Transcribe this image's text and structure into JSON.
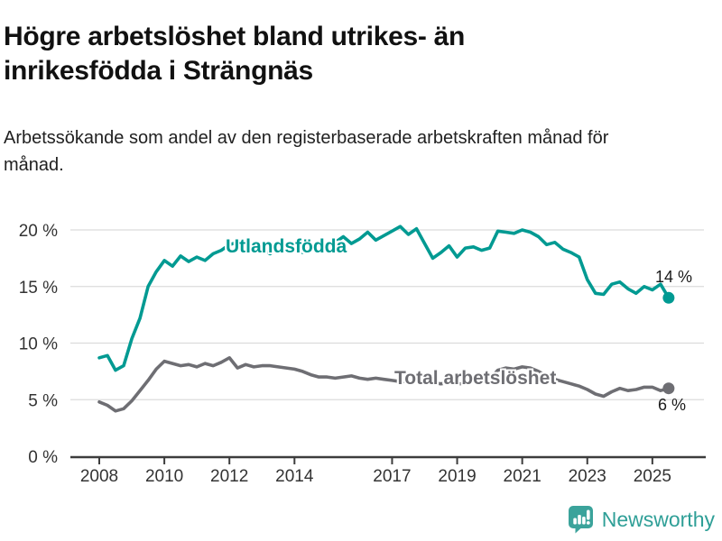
{
  "chart_data": {
    "type": "line",
    "title": "Högre arbetslöshet bland utrikes- än inrikesfödda i Strängnäs",
    "subtitle": "Arbetssökande som andel av den registerbaserade arbetskraften månad för månad.",
    "unit": "%",
    "grid": "horizontal",
    "legend_position": "inline-labels-on-lines",
    "ylim": [
      0,
      21
    ],
    "x_ticks": [
      2008,
      2010,
      2012,
      2014,
      2017,
      2019,
      2021,
      2023,
      2025
    ],
    "y_ticks": [
      {
        "value": 0,
        "label": "0 %"
      },
      {
        "value": 5,
        "label": "5 %"
      },
      {
        "value": 10,
        "label": "10 %"
      },
      {
        "value": 15,
        "label": "15 %"
      },
      {
        "value": 20,
        "label": "20 %"
      }
    ],
    "x": [
      2008.0,
      2008.25,
      2008.5,
      2008.75,
      2009.0,
      2009.25,
      2009.5,
      2009.75,
      2010.0,
      2010.25,
      2010.5,
      2010.75,
      2011.0,
      2011.25,
      2011.5,
      2011.75,
      2012.0,
      2012.25,
      2012.5,
      2012.75,
      2013.0,
      2013.25,
      2013.5,
      2013.75,
      2014.0,
      2014.25,
      2014.5,
      2014.75,
      2015.0,
      2015.25,
      2015.5,
      2015.75,
      2016.0,
      2016.25,
      2016.5,
      2016.75,
      2017.0,
      2017.25,
      2017.5,
      2017.75,
      2018.0,
      2018.25,
      2018.5,
      2018.75,
      2019.0,
      2019.25,
      2019.5,
      2019.75,
      2020.0,
      2020.25,
      2020.5,
      2020.75,
      2021.0,
      2021.25,
      2021.5,
      2021.75,
      2022.0,
      2022.25,
      2022.5,
      2022.75,
      2023.0,
      2023.25,
      2023.5,
      2023.75,
      2024.0,
      2024.25,
      2024.5,
      2024.75,
      2025.0,
      2025.25,
      2025.5
    ],
    "series": [
      {
        "name": "Utlandsfödda",
        "color": "#009a92",
        "end_label": "14 %",
        "end_value": 14,
        "values": [
          8.7,
          8.9,
          7.6,
          8.0,
          10.4,
          12.2,
          15.0,
          16.3,
          17.3,
          16.8,
          17.7,
          17.2,
          17.6,
          17.3,
          17.9,
          18.2,
          18.7,
          18.9,
          18.4,
          18.6,
          18.3,
          17.9,
          18.4,
          18.1,
          18.4,
          18.0,
          18.5,
          18.8,
          18.3,
          18.9,
          19.4,
          18.8,
          19.2,
          19.8,
          19.1,
          19.5,
          19.9,
          20.3,
          19.6,
          20.1,
          18.8,
          17.5,
          18.0,
          18.6,
          17.6,
          18.4,
          18.5,
          18.2,
          18.4,
          19.9,
          19.8,
          19.7,
          20.0,
          19.8,
          19.4,
          18.7,
          18.9,
          18.3,
          18.0,
          17.6,
          15.6,
          14.4,
          14.3,
          15.2,
          15.4,
          14.8,
          14.4,
          15.0,
          14.7,
          15.2,
          14.0
        ]
      },
      {
        "name": "Total arbetslöshet",
        "color": "#6e6e73",
        "end_label": "6 %",
        "end_value": 6,
        "values": [
          4.8,
          4.5,
          4.0,
          4.2,
          4.9,
          5.8,
          6.7,
          7.7,
          8.4,
          8.2,
          8.0,
          8.1,
          7.9,
          8.2,
          8.0,
          8.3,
          8.7,
          7.8,
          8.1,
          7.9,
          8.0,
          8.0,
          7.9,
          7.8,
          7.7,
          7.5,
          7.2,
          7.0,
          7.0,
          6.9,
          7.0,
          7.1,
          6.9,
          6.8,
          6.9,
          6.8,
          6.7,
          6.6,
          6.6,
          6.5,
          6.6,
          6.5,
          6.4,
          6.5,
          6.4,
          6.4,
          6.5,
          6.7,
          6.8,
          7.6,
          7.8,
          7.7,
          7.9,
          7.8,
          7.5,
          7.1,
          6.8,
          6.6,
          6.4,
          6.2,
          5.9,
          5.5,
          5.3,
          5.7,
          6.0,
          5.8,
          5.9,
          6.1,
          6.1,
          5.8,
          6.0
        ]
      }
    ]
  },
  "footer": {
    "brand": "Newsworthy",
    "brand_color": "#2f9f97"
  }
}
